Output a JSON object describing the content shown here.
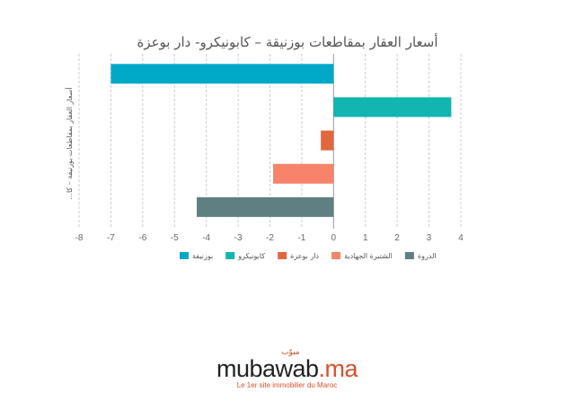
{
  "chart_data": {
    "type": "bar",
    "orientation": "horizontal",
    "title": "أسعار العقار بمقاطعات بوزنيقة – كابونيكرو- دار بوعزة",
    "ylabel": "أسعار العقار بمقاطعات بوزنيقة – كا...",
    "xlabel": "",
    "xlim": [
      -8,
      4
    ],
    "xticks": [
      "-8",
      "-7",
      "-6",
      "-5",
      "-4",
      "-3",
      "-2",
      "-1",
      "0",
      "1",
      "2",
      "3",
      "4"
    ],
    "grid": true,
    "legend_position": "bottom",
    "series": [
      {
        "name": "بوزنيقة",
        "value": -7.0,
        "color": "#00a9c8"
      },
      {
        "name": "كابونيكرو",
        "value": 3.7,
        "color": "#12b5b0"
      },
      {
        "name": "دار بوعزة",
        "value": -0.4,
        "color": "#e2673e"
      },
      {
        "name": "الشتيرة الجهادية",
        "value": -1.9,
        "color": "#f6836a"
      },
      {
        "name": "الدروة",
        "value": -4.3,
        "color": "#5f7f82"
      }
    ]
  },
  "branding": {
    "logo_main": "mubawab",
    "logo_suffix": ".ma",
    "logo_arabic": "مبوّب",
    "tagline": "Le 1er site immobilier du Maroc"
  }
}
